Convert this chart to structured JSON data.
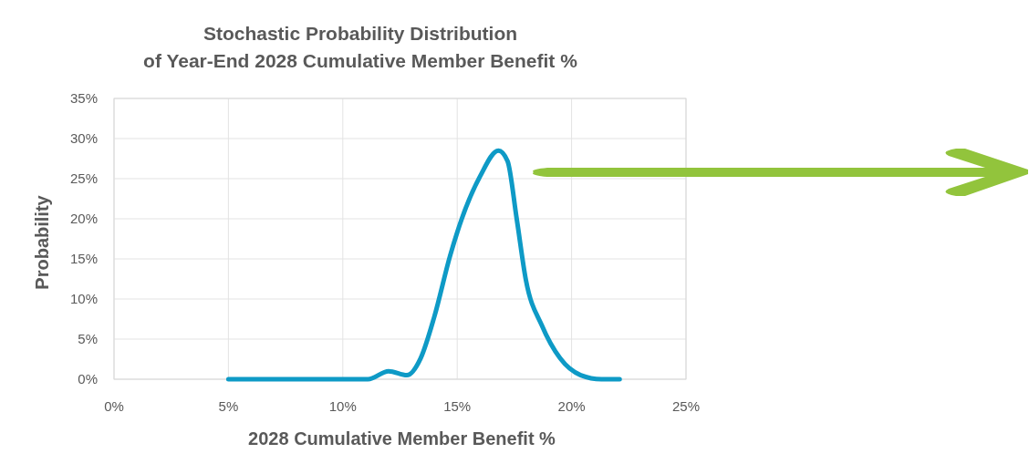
{
  "chart_data": {
    "type": "line",
    "title": "Stochastic Probability Distribution\nof Year-End 2028 Cumulative Member Benefit %",
    "xlabel": "2028 Cumulative Member Benefit %",
    "ylabel": "Probability",
    "series": [
      {
        "color": "#0e9ac6",
        "x": [
          5,
          8,
          10,
          11.1,
          12,
          12.8,
          13.4,
          14,
          14.7,
          15.2,
          16,
          16.8,
          17.2,
          17.6,
          18,
          18.7,
          19.5,
          20.4,
          21.3,
          22.1
        ],
        "values": [
          0,
          0,
          0,
          0,
          1,
          0.5,
          2.6,
          7.8,
          15.5,
          20,
          25.3,
          28.5,
          27.2,
          20,
          12.4,
          6.7,
          2.6,
          0.5,
          0,
          0
        ]
      }
    ],
    "xlim": [
      0,
      25
    ],
    "xticks": [
      {
        "value": 0,
        "label": "0%"
      },
      {
        "value": 5,
        "label": "5%"
      },
      {
        "value": 10,
        "label": "10%"
      },
      {
        "value": 15,
        "label": "15%"
      },
      {
        "value": 20,
        "label": "20%"
      },
      {
        "value": 25,
        "label": "25%"
      }
    ],
    "ylim": [
      0,
      35
    ],
    "yticks": [
      {
        "value": 0,
        "label": "0%"
      },
      {
        "value": 5,
        "label": "5%"
      },
      {
        "value": 10,
        "label": "10%"
      },
      {
        "value": 15,
        "label": "15%"
      },
      {
        "value": 20,
        "label": "20%"
      },
      {
        "value": 25,
        "label": "25%"
      },
      {
        "value": 30,
        "label": "30%"
      },
      {
        "value": 35,
        "label": "35%"
      }
    ],
    "grid": true,
    "marker": "none",
    "line_style": "solid"
  }
}
